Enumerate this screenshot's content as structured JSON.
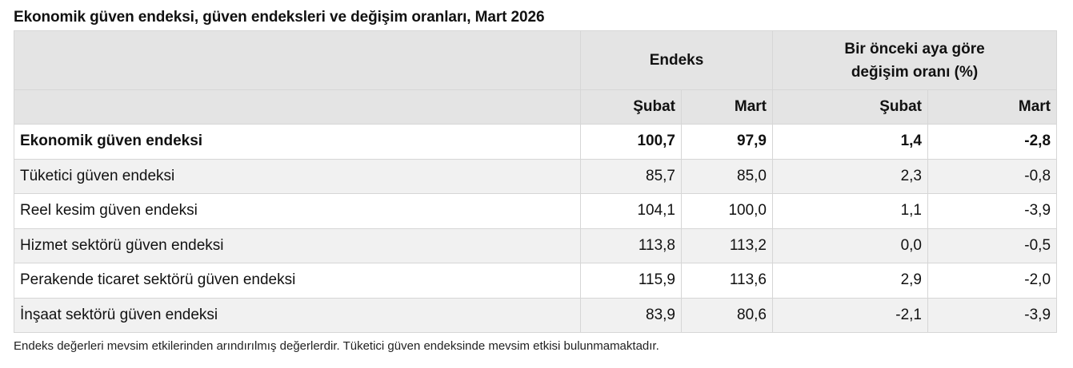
{
  "title": "Ekonomik güven endeksi, güven endeksleri ve değişim oranları, Mart 2026",
  "table": {
    "group_headers": {
      "label": "",
      "index": "Endeks",
      "change_line1": "Bir önceki aya göre",
      "change_line2": "değişim oranı (%)"
    },
    "sub_headers": {
      "label": "",
      "index_feb": "Şubat",
      "index_mar": "Mart",
      "change_feb": "Şubat",
      "change_mar": "Mart"
    },
    "rows": [
      {
        "label": "Ekonomik güven endeksi",
        "index_feb": "100,7",
        "index_mar": "97,9",
        "change_feb": "1,4",
        "change_mar": "-2,8",
        "bold": true
      },
      {
        "label": "Tüketici güven endeksi",
        "index_feb": "85,7",
        "index_mar": "85,0",
        "change_feb": "2,3",
        "change_mar": "-0,8"
      },
      {
        "label": "Reel kesim güven endeksi",
        "index_feb": "104,1",
        "index_mar": "100,0",
        "change_feb": "1,1",
        "change_mar": "-3,9"
      },
      {
        "label": "Hizmet sektörü güven endeksi",
        "index_feb": "113,8",
        "index_mar": "113,2",
        "change_feb": "0,0",
        "change_mar": "-0,5"
      },
      {
        "label": "Perakende ticaret sektörü güven endeksi",
        "index_feb": "115,9",
        "index_mar": "113,6",
        "change_feb": "2,9",
        "change_mar": "-2,0"
      },
      {
        "label": "İnşaat sektörü güven endeksi",
        "index_feb": "83,9",
        "index_mar": "80,6",
        "change_feb": "-2,1",
        "change_mar": "-3,9"
      }
    ]
  },
  "footnote": "Endeks değerleri mevsim etkilerinden arındırılmış değerlerdir. Tüketici güven endeksinde mevsim etkisi bulunmamaktadır.",
  "colors": {
    "header_bg": "#e4e4e4",
    "row_alt_bg": "#f1f1f1",
    "border": "#d6d6d6"
  }
}
